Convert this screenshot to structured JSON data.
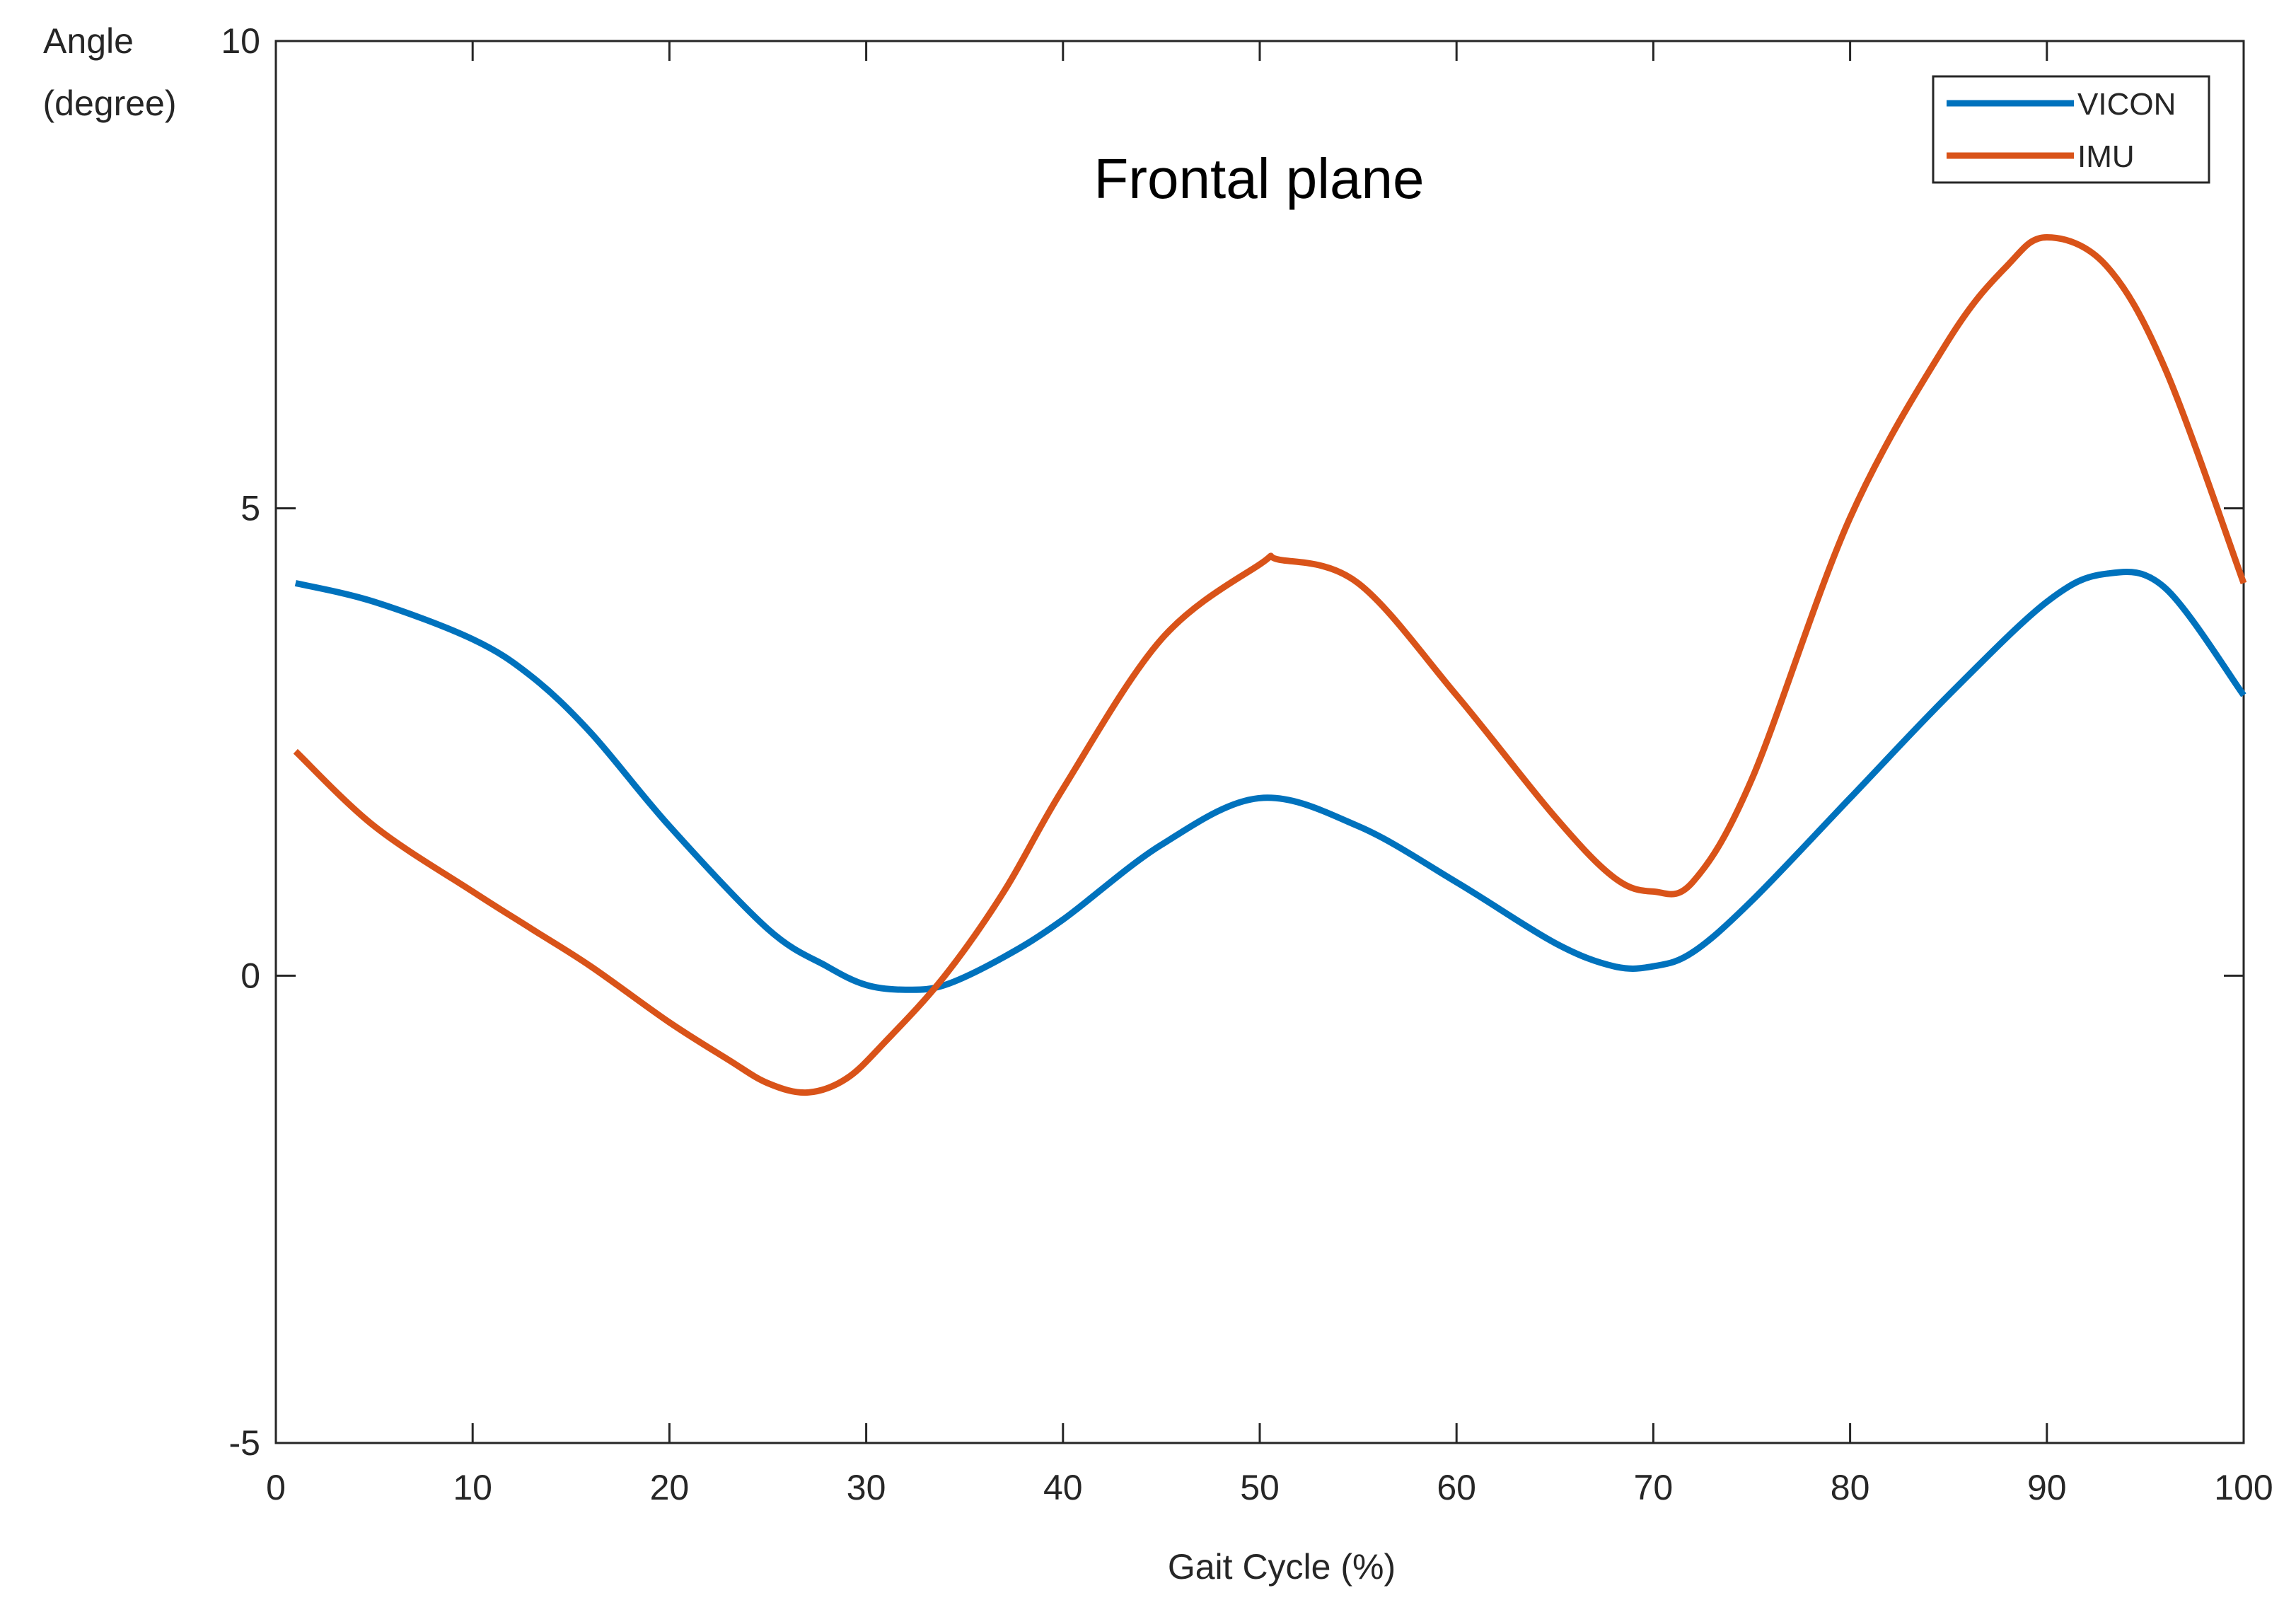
{
  "chart_data": {
    "type": "line",
    "title": "Frontal plane",
    "xlabel": "Gait Cycle (%)",
    "ylabel_lines": [
      "Angle",
      "(degree)"
    ],
    "xlim": [
      0,
      100
    ],
    "ylim": [
      -5,
      10
    ],
    "xticks": [
      0,
      10,
      20,
      30,
      40,
      50,
      60,
      70,
      80,
      90,
      100
    ],
    "yticks": [
      -5,
      0,
      5,
      10
    ],
    "grid": false,
    "legend_position": "top-right",
    "series": [
      {
        "name": "VICON",
        "color": "#0072BD",
        "x": [
          1,
          5,
          10,
          13,
          16,
          20,
          25,
          28,
          30,
          32,
          34,
          37,
          40,
          45,
          50,
          55,
          60,
          65,
          68,
          70,
          72,
          75,
          80,
          85,
          90,
          93,
          96,
          100
        ],
        "y": [
          4.2,
          4.0,
          3.6,
          3.2,
          2.6,
          1.6,
          0.5,
          0.1,
          -0.1,
          -0.15,
          -0.1,
          0.2,
          0.6,
          1.4,
          1.9,
          1.6,
          1.0,
          0.35,
          0.1,
          0.1,
          0.25,
          0.8,
          1.9,
          3.0,
          4.0,
          4.3,
          4.15,
          3.0
        ]
      },
      {
        "name": "IMU",
        "color": "#D95319",
        "x": [
          1,
          5,
          10,
          13,
          16,
          20,
          23,
          25,
          27,
          29,
          31,
          34,
          37,
          40,
          45,
          50,
          51,
          55,
          60,
          65,
          68,
          70,
          72,
          75,
          80,
          85,
          88,
          90,
          93,
          96,
          100
        ],
        "y": [
          2.4,
          1.6,
          0.9,
          0.5,
          0.1,
          -0.5,
          -0.9,
          -1.15,
          -1.25,
          -1.1,
          -0.7,
          0.0,
          0.9,
          2.0,
          3.6,
          4.4,
          4.45,
          4.2,
          3.0,
          1.7,
          1.05,
          0.9,
          1.0,
          2.1,
          4.9,
          6.8,
          7.6,
          7.9,
          7.6,
          6.5,
          4.2
        ]
      }
    ]
  }
}
